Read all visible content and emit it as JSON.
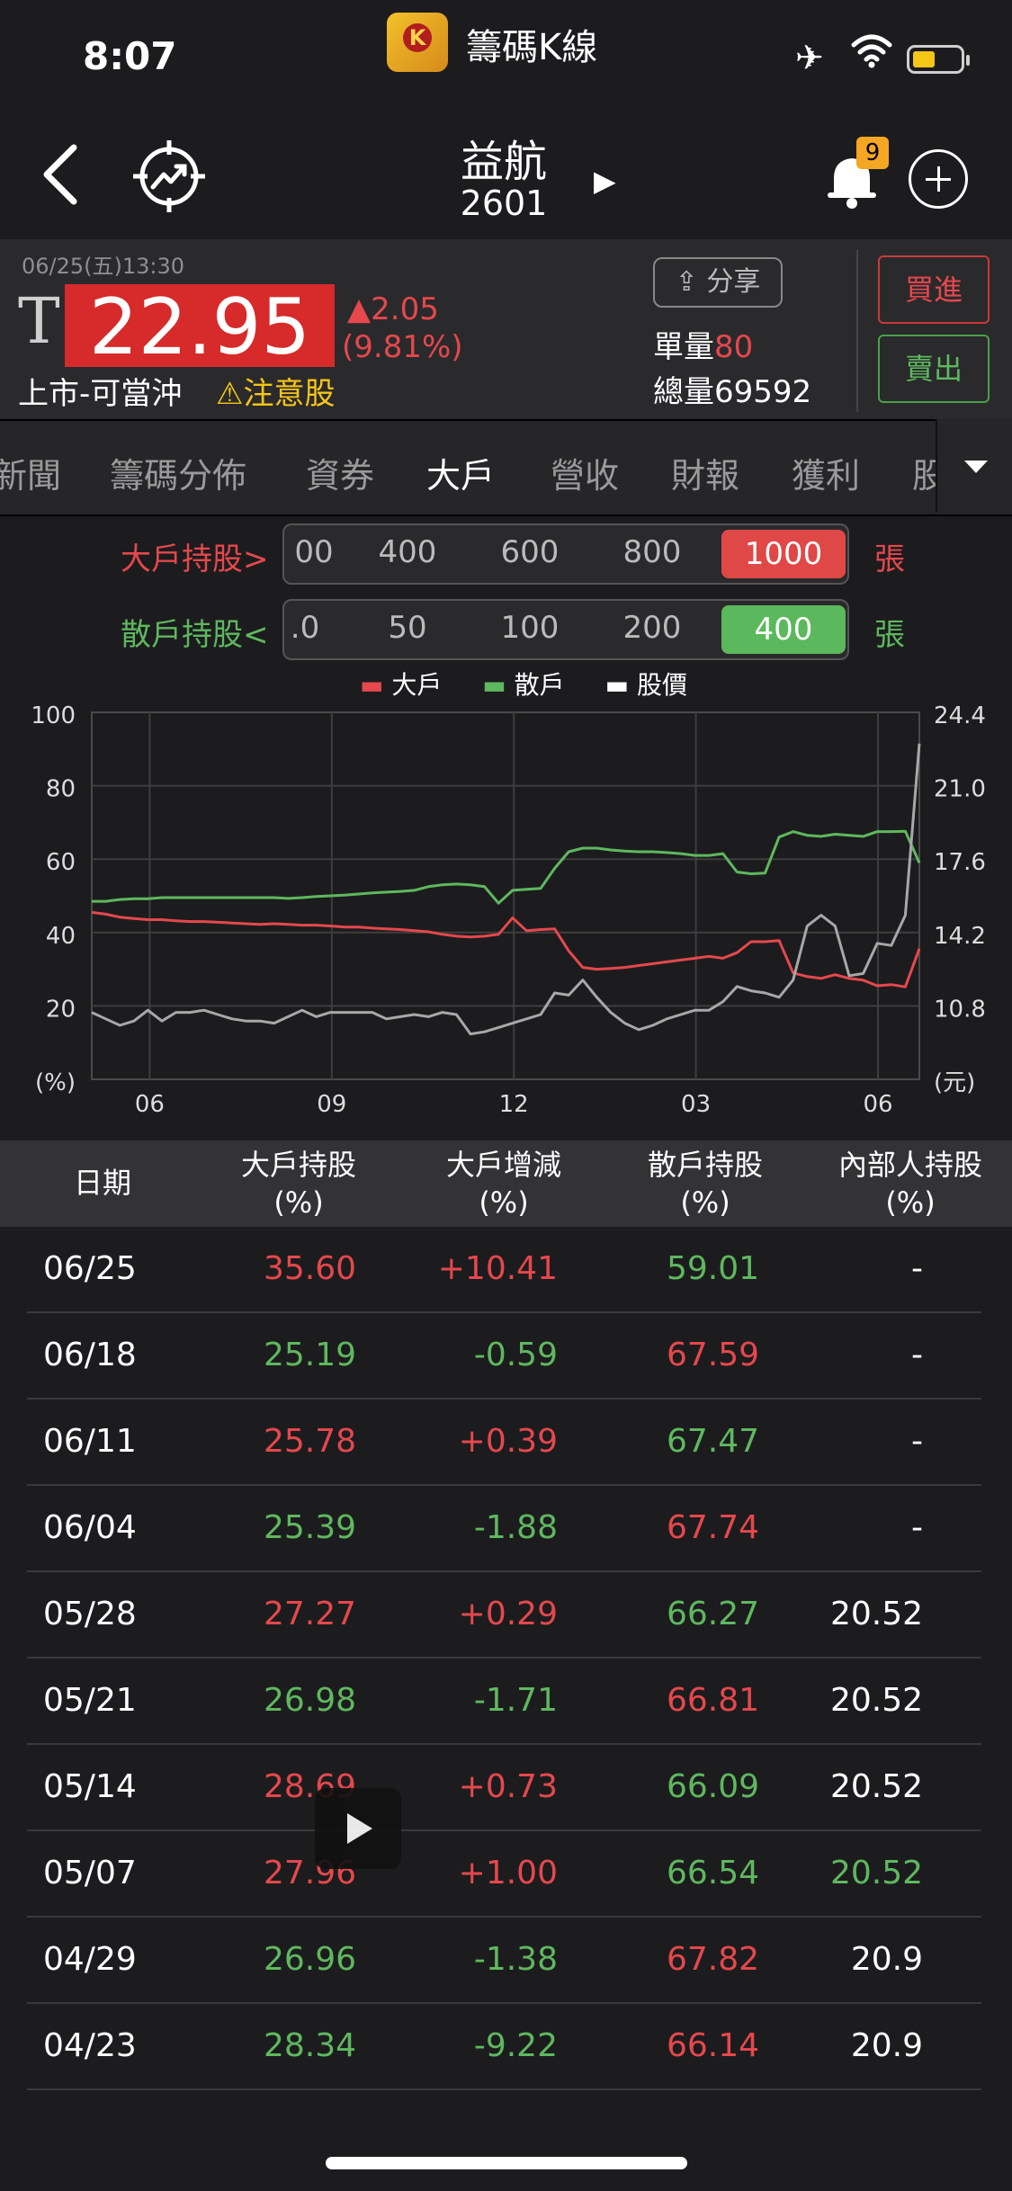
{
  "status_bar": {
    "time": "8:07",
    "app_name": "籌碼K線",
    "app_icon_letter": "K",
    "icons": [
      "airplane-icon",
      "wifi-icon",
      "battery-icon"
    ]
  },
  "nav": {
    "stock_name": "益航",
    "stock_code": "2601",
    "notification_count": "9",
    "icons": [
      "back-chevron-icon",
      "target-trend-icon",
      "play-triangle-icon",
      "bell-icon",
      "add-circle-icon"
    ]
  },
  "quote": {
    "datetime": "06/25(五)13:30",
    "t_mark": "T",
    "price": "22.95",
    "change": "▲2.05",
    "change_pct": "(9.81%)",
    "market": "上市-可當沖",
    "warning": "⚠注意股",
    "share_label": "分享",
    "single_vol_label": "單量",
    "single_vol_value": "80",
    "total_vol_label": "總量",
    "total_vol_value": "69592",
    "buy_label": "買進",
    "sell_label": "賣出"
  },
  "tabs": {
    "items": [
      "新聞",
      "籌碼分佈",
      "資券",
      "大戶",
      "營收",
      "財報",
      "獲利",
      "股"
    ],
    "active": "大戶"
  },
  "filters": {
    "big": {
      "label": "大戶持股>",
      "options": [
        "00",
        "400",
        "600",
        "800"
      ],
      "selected": "1000",
      "unit": "張"
    },
    "retail": {
      "label": "散戶持股<",
      "options": [
        ".0",
        "50",
        "100",
        "200"
      ],
      "selected": "400",
      "unit": "張"
    }
  },
  "legend": {
    "big": "大戶",
    "retail": "散戶",
    "price": "股價"
  },
  "colors": {
    "red": "#e5484d",
    "green": "#5fb85f",
    "grey": "#a8a8a8",
    "price_box": "#d72a2a",
    "selected_red": "#e04848",
    "selected_green": "#5cb85c"
  },
  "chart_data": {
    "type": "line",
    "x_ticks": [
      "06",
      "09",
      "12",
      "03",
      "06"
    ],
    "y_left_ticks": [
      "100",
      "80",
      "60",
      "40",
      "20",
      "(%)"
    ],
    "y_right_ticks": [
      "24.4",
      "21.0",
      "17.6",
      "14.2",
      "10.8",
      "(元)"
    ],
    "y_left_range": [
      0,
      100
    ],
    "y_right_range": [
      7.4,
      24.4
    ],
    "grid": true,
    "series": [
      {
        "name": "大戶",
        "axis": "left",
        "color": "#e5484d",
        "values": [
          45.5,
          45,
          44.2,
          43.8,
          43.5,
          43.5,
          43.2,
          43,
          43,
          42.8,
          42.6,
          42.4,
          42.2,
          42.4,
          42.2,
          42,
          42,
          41.8,
          41.5,
          41.5,
          41.2,
          41,
          40.8,
          40.5,
          40.2,
          39.5,
          39,
          38.8,
          39,
          39.5,
          44,
          40.5,
          40.8,
          41,
          35,
          30.5,
          30,
          30.2,
          30.5,
          31,
          31.5,
          32,
          32.5,
          33,
          33.5,
          33,
          34.5,
          37.5,
          37.5,
          37.8,
          29,
          28,
          27.5,
          28.5,
          27.5,
          27,
          25.5,
          25.8,
          25.2,
          35.6
        ]
      },
      {
        "name": "散戶",
        "axis": "left",
        "color": "#5fb85f",
        "values": [
          48.5,
          48.5,
          49,
          49.2,
          49.2,
          49.5,
          49.5,
          49.5,
          49.5,
          49.5,
          49.5,
          49.5,
          49.5,
          49.5,
          49.3,
          49.5,
          49.8,
          50,
          50.2,
          50.5,
          50.8,
          51,
          51.2,
          51.5,
          52.5,
          53,
          53.2,
          53,
          52.5,
          48,
          51.5,
          51.8,
          52,
          57.5,
          62,
          63,
          63,
          62.5,
          62.2,
          62,
          62,
          61.8,
          61.5,
          61,
          61,
          61.5,
          56.5,
          56,
          56.2,
          66,
          67.5,
          66.5,
          66.2,
          66.8,
          66.5,
          66.2,
          67.5,
          67.5,
          67.6,
          59
        ]
      },
      {
        "name": "股價",
        "axis": "right",
        "color": "#a8a8a8",
        "values": [
          10.5,
          10.2,
          9.9,
          10.1,
          10.6,
          10.1,
          10.5,
          10.5,
          10.6,
          10.4,
          10.2,
          10.1,
          10.1,
          10,
          10.3,
          10.6,
          10.3,
          10.5,
          10.5,
          10.5,
          10.5,
          10.2,
          10.3,
          10.4,
          10.3,
          10.5,
          10.4,
          9.5,
          9.6,
          9.8,
          10,
          10.2,
          10.4,
          11.4,
          11.3,
          12,
          11.2,
          10.5,
          10,
          9.7,
          9.9,
          10.2,
          10.4,
          10.6,
          10.6,
          11,
          11.7,
          11.5,
          11.4,
          11.2,
          12,
          14.5,
          15,
          14.5,
          12.2,
          12.3,
          13.7,
          13.6,
          15,
          22.95
        ]
      }
    ]
  },
  "table": {
    "headers": [
      {
        "line1": "日期",
        "line2": ""
      },
      {
        "line1": "大戶持股",
        "line2": "(%)"
      },
      {
        "line1": "大戶增減",
        "line2": "(%)"
      },
      {
        "line1": "散戶持股",
        "line2": "(%)"
      },
      {
        "line1": "內部人持股",
        "line2": "(%)"
      }
    ],
    "rows": [
      {
        "date": "06/25",
        "big": "35.60",
        "big_c": "red",
        "chg": "+10.41",
        "chg_c": "red",
        "ret": "59.01",
        "ret_c": "green",
        "ins": "-",
        "ins_c": "white"
      },
      {
        "date": "06/18",
        "big": "25.19",
        "big_c": "green",
        "chg": "-0.59",
        "chg_c": "green",
        "ret": "67.59",
        "ret_c": "red",
        "ins": "-",
        "ins_c": "white"
      },
      {
        "date": "06/11",
        "big": "25.78",
        "big_c": "red",
        "chg": "+0.39",
        "chg_c": "red",
        "ret": "67.47",
        "ret_c": "green",
        "ins": "-",
        "ins_c": "white"
      },
      {
        "date": "06/04",
        "big": "25.39",
        "big_c": "green",
        "chg": "-1.88",
        "chg_c": "green",
        "ret": "67.74",
        "ret_c": "red",
        "ins": "-",
        "ins_c": "white"
      },
      {
        "date": "05/28",
        "big": "27.27",
        "big_c": "red",
        "chg": "+0.29",
        "chg_c": "red",
        "ret": "66.27",
        "ret_c": "green",
        "ins": "20.52",
        "ins_c": "white"
      },
      {
        "date": "05/21",
        "big": "26.98",
        "big_c": "green",
        "chg": "-1.71",
        "chg_c": "green",
        "ret": "66.81",
        "ret_c": "red",
        "ins": "20.52",
        "ins_c": "white"
      },
      {
        "date": "05/14",
        "big": "28.69",
        "big_c": "red",
        "chg": "+0.73",
        "chg_c": "red",
        "ret": "66.09",
        "ret_c": "green",
        "ins": "20.52",
        "ins_c": "white"
      },
      {
        "date": "05/07",
        "big": "27.96",
        "big_c": "red",
        "chg": "+1.00",
        "chg_c": "red",
        "ret": "66.54",
        "ret_c": "green",
        "ins": "20.52",
        "ins_c": "green"
      },
      {
        "date": "04/29",
        "big": "26.96",
        "big_c": "green",
        "chg": "-1.38",
        "chg_c": "green",
        "ret": "67.82",
        "ret_c": "red",
        "ins": "20.9",
        "ins_c": "white"
      },
      {
        "date": "04/23",
        "big": "28.34",
        "big_c": "green",
        "chg": "-9.22",
        "chg_c": "green",
        "ret": "66.14",
        "ret_c": "red",
        "ins": "20.9",
        "ins_c": "white"
      }
    ]
  }
}
